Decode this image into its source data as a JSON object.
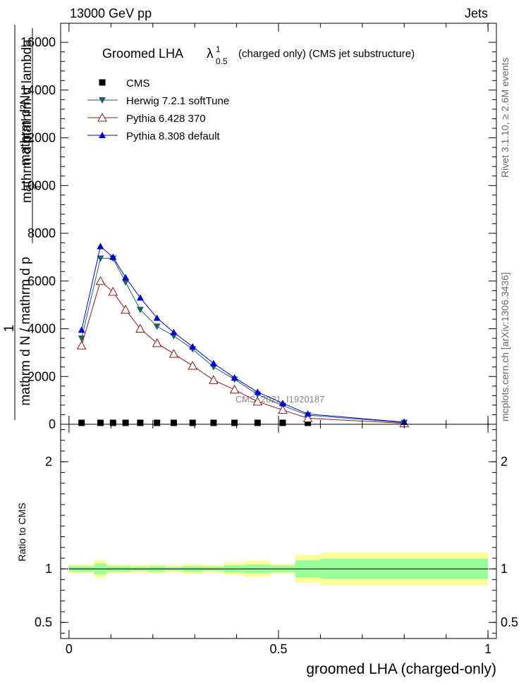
{
  "header": {
    "left": "13000 GeV pp",
    "right": "Jets"
  },
  "side_labels": {
    "rivet": "Rivet 3.1.10, ≥ 2.6M events",
    "mcplots": "mcplots.cern.ch [arXiv:1306.3436]"
  },
  "watermark": "CMS_2021_I1920187",
  "chart_data": [
    {
      "type": "line",
      "title": "Groomed LHA",
      "title_symbol": "λ",
      "title_sup": "1",
      "title_sub": "0.5",
      "title_suffix": "(charged only) (CMS jet substructure)",
      "ylabel_lines": [
        "1",
        "mathrm d N / mathrm d p",
        "mathrm d²N",
        "mathrm d p",
        "mathrm d lambda"
      ],
      "ylabel_sub": "T",
      "ylim": [
        0,
        16800
      ],
      "yticks": [
        0,
        2000,
        4000,
        6000,
        8000,
        10000,
        12000,
        14000,
        16000
      ],
      "ytick_labels": [
        "0",
        "2000",
        "4000",
        "6000",
        "8000",
        "10000",
        "12000",
        "14000",
        "16000"
      ],
      "xlim": [
        -0.02,
        1.02
      ],
      "legend_position": "top-left",
      "series": [
        {
          "name": "CMS",
          "color": "#000000",
          "marker": "square",
          "x": [
            0.03,
            0.075,
            0.105,
            0.135,
            0.17,
            0.21,
            0.25,
            0.295,
            0.345,
            0.395,
            0.45,
            0.51,
            0.57
          ],
          "values": [
            0,
            0,
            0,
            0,
            0,
            0,
            0,
            0,
            0,
            0,
            0,
            0,
            0
          ]
        },
        {
          "name": "Herwig 7.2.1 softTune",
          "color": "#1f5f6a",
          "marker": "triangle-down",
          "x": [
            0.03,
            0.075,
            0.105,
            0.135,
            0.17,
            0.21,
            0.25,
            0.295,
            0.345,
            0.395,
            0.45,
            0.51,
            0.57,
            0.8
          ],
          "values": [
            3600,
            6950,
            6950,
            5950,
            4800,
            4100,
            3700,
            3150,
            2400,
            1880,
            1250,
            780,
            380,
            70
          ]
        },
        {
          "name": "Pythia 6.428 370",
          "color": "#8b1a1a",
          "marker": "triangle-open",
          "x": [
            0.03,
            0.075,
            0.105,
            0.135,
            0.17,
            0.21,
            0.25,
            0.295,
            0.345,
            0.395,
            0.45,
            0.51,
            0.57,
            0.8
          ],
          "values": [
            3300,
            6000,
            5550,
            4800,
            4000,
            3400,
            2950,
            2450,
            1850,
            1450,
            950,
            600,
            250,
            40
          ]
        },
        {
          "name": "Pythia 8.308 default",
          "color": "#0000cc",
          "marker": "triangle-up",
          "x": [
            0.03,
            0.075,
            0.105,
            0.135,
            0.17,
            0.21,
            0.25,
            0.295,
            0.345,
            0.395,
            0.45,
            0.51,
            0.57,
            0.8
          ],
          "values": [
            3950,
            7450,
            7000,
            6150,
            5300,
            4450,
            3850,
            3250,
            2550,
            1950,
            1350,
            880,
            430,
            90
          ]
        }
      ]
    },
    {
      "type": "area",
      "ylabel": "Ratio to CMS",
      "xlabel": "groomed LHA (charged-only)",
      "ylim": [
        0.35,
        2.35
      ],
      "yticks": [
        0.5,
        1,
        2
      ],
      "ytick_labels": [
        "0.5",
        "1",
        "2"
      ],
      "xticks": [
        0,
        0.5,
        1
      ],
      "xtick_labels": [
        "0",
        "0.5",
        "1"
      ],
      "xlim": [
        -0.02,
        1.02
      ],
      "band_colors": {
        "inner": "#99ff99",
        "outer": "#ffff99"
      },
      "bins": [
        {
          "lo": 0.0,
          "hi": 0.06,
          "inner": 0.025,
          "outer": 0.04
        },
        {
          "lo": 0.06,
          "hi": 0.09,
          "inner": 0.05,
          "outer": 0.08
        },
        {
          "lo": 0.09,
          "hi": 0.12,
          "inner": 0.025,
          "outer": 0.04
        },
        {
          "lo": 0.12,
          "hi": 0.15,
          "inner": 0.025,
          "outer": 0.04
        },
        {
          "lo": 0.15,
          "hi": 0.19,
          "inner": 0.02,
          "outer": 0.035
        },
        {
          "lo": 0.19,
          "hi": 0.23,
          "inner": 0.025,
          "outer": 0.04
        },
        {
          "lo": 0.23,
          "hi": 0.27,
          "inner": 0.015,
          "outer": 0.03
        },
        {
          "lo": 0.27,
          "hi": 0.32,
          "inner": 0.025,
          "outer": 0.045
        },
        {
          "lo": 0.32,
          "hi": 0.37,
          "inner": 0.02,
          "outer": 0.035
        },
        {
          "lo": 0.37,
          "hi": 0.42,
          "inner": 0.035,
          "outer": 0.06
        },
        {
          "lo": 0.42,
          "hi": 0.48,
          "inner": 0.04,
          "outer": 0.075
        },
        {
          "lo": 0.48,
          "hi": 0.54,
          "inner": 0.03,
          "outer": 0.045
        },
        {
          "lo": 0.54,
          "hi": 0.6,
          "inner": 0.08,
          "outer": 0.13
        },
        {
          "lo": 0.6,
          "hi": 1.0,
          "inner": 0.095,
          "outer": 0.155
        }
      ]
    }
  ]
}
